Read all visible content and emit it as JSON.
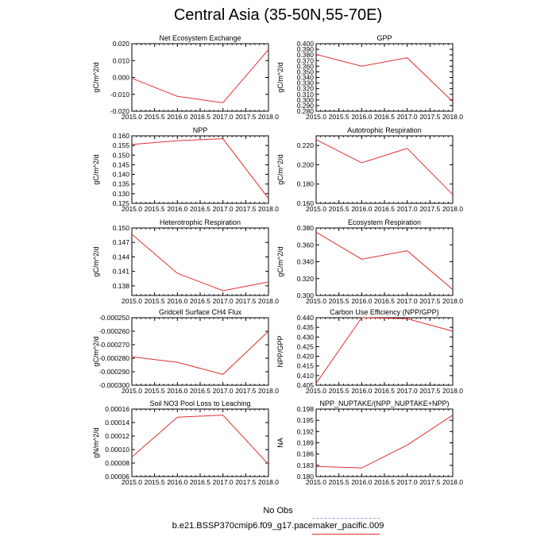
{
  "title": "Central Asia (35-50N,55-70E)",
  "legend": {
    "obs_label": "No Obs",
    "model_label": "b.e21.BSSP370cmip6.f09_g17.pacemaker_pacific.009",
    "obs_color": "#9aa0f0",
    "model_color": "#e03030"
  },
  "chart_data": [
    {
      "type": "line",
      "title": "Net Ecosystem Exchange",
      "ylabel": "gC/m^2/d",
      "x": [
        2015,
        2016,
        2017,
        2018
      ],
      "series": [
        {
          "values": [
            -0.0005,
            -0.0112,
            -0.015,
            0.0165
          ]
        }
      ],
      "xlim": [
        2015,
        2018
      ],
      "ylim": [
        -0.02,
        0.02
      ],
      "yticks": [
        -0.02,
        -0.01,
        0.0,
        0.01,
        0.02
      ],
      "yticklabels": [
        "-0.020",
        "-0.010",
        "0.000",
        "0.010",
        "0.020"
      ],
      "xticklabels": [
        "2015.0",
        "2015.5",
        "2016.0",
        "2016.5",
        "2017.0",
        "2017.5",
        "2018.0"
      ]
    },
    {
      "type": "line",
      "title": "GPP",
      "ylabel": "gC/m^2/d",
      "x": [
        2015,
        2016,
        2017,
        2018
      ],
      "series": [
        {
          "values": [
            0.381,
            0.36,
            0.375,
            0.297
          ]
        }
      ],
      "xlim": [
        2015,
        2018
      ],
      "ylim": [
        0.28,
        0.4
      ],
      "yticks": [
        0.28,
        0.29,
        0.3,
        0.31,
        0.32,
        0.33,
        0.34,
        0.35,
        0.36,
        0.37,
        0.38,
        0.39,
        0.4
      ],
      "yticklabels": [
        "0.280",
        "0.290",
        "0.300",
        "0.310",
        "0.320",
        "0.330",
        "0.340",
        "0.350",
        "0.360",
        "0.370",
        "0.380",
        "0.390",
        "0.400"
      ],
      "xticklabels": [
        "2015.0",
        "2015.5",
        "2016.0",
        "2016.5",
        "2017.0",
        "2017.5",
        "2018.0"
      ]
    },
    {
      "type": "line",
      "title": "NPP",
      "ylabel": "gC/m^2/d",
      "x": [
        2015,
        2016,
        2017,
        2018
      ],
      "series": [
        {
          "values": [
            0.1555,
            0.1575,
            0.1585,
            0.1275
          ]
        }
      ],
      "xlim": [
        2015,
        2018
      ],
      "ylim": [
        0.125,
        0.16
      ],
      "yticks": [
        0.125,
        0.13,
        0.135,
        0.14,
        0.145,
        0.15,
        0.155,
        0.16
      ],
      "yticklabels": [
        "0.125",
        "0.130",
        "0.135",
        "0.140",
        "0.145",
        "0.150",
        "0.155",
        "0.160"
      ],
      "xticklabels": [
        "2015.0",
        "2015.5",
        "2016.0",
        "2016.5",
        "2017.0",
        "2017.5",
        "2018.0"
      ]
    },
    {
      "type": "line",
      "title": "Autotrophic Respiration",
      "ylabel": "gC/m^2/d",
      "x": [
        2015,
        2016,
        2017,
        2018
      ],
      "series": [
        {
          "values": [
            0.226,
            0.202,
            0.217,
            0.169
          ]
        }
      ],
      "xlim": [
        2015,
        2018
      ],
      "ylim": [
        0.16,
        0.23
      ],
      "yticks": [
        0.16,
        0.18,
        0.2,
        0.22
      ],
      "yticklabels": [
        "0.160",
        "0.180",
        "0.200",
        "0.220"
      ],
      "xticklabels": [
        "2015.0",
        "2015.5",
        "2016.0",
        "2016.5",
        "2017.0",
        "2017.5",
        "2018.0"
      ]
    },
    {
      "type": "line",
      "title": "Heterotrophic Respiration",
      "ylabel": "gC/m^2/d",
      "x": [
        2015,
        2016,
        2017,
        2018
      ],
      "series": [
        {
          "values": [
            0.1487,
            0.1406,
            0.137,
            0.1388
          ]
        }
      ],
      "xlim": [
        2015,
        2018
      ],
      "ylim": [
        0.136,
        0.15
      ],
      "yticks": [
        0.138,
        0.141,
        0.144,
        0.147,
        0.15
      ],
      "yticklabels": [
        "0.138",
        "0.141",
        "0.144",
        "0.147",
        "0.150"
      ],
      "xticklabels": [
        "2015.0",
        "2015.5",
        "2016.0",
        "2016.5",
        "2017.0",
        "2017.5",
        "2018.0"
      ]
    },
    {
      "type": "line",
      "title": "Ecosystem Respiration",
      "ylabel": "gC/m^2/d",
      "x": [
        2015,
        2016,
        2017,
        2018
      ],
      "series": [
        {
          "values": [
            0.375,
            0.343,
            0.353,
            0.307
          ]
        }
      ],
      "xlim": [
        2015,
        2018
      ],
      "ylim": [
        0.3,
        0.38
      ],
      "yticks": [
        0.3,
        0.32,
        0.34,
        0.36,
        0.38
      ],
      "yticklabels": [
        "0.300",
        "0.320",
        "0.340",
        "0.360",
        "0.380"
      ],
      "xticklabels": [
        "2015.0",
        "2015.5",
        "2016.0",
        "2016.5",
        "2017.0",
        "2017.5",
        "2018.0"
      ]
    },
    {
      "type": "line",
      "title": "Gridcell Surface CH4 Flux",
      "ylabel": "gC/m^2/d",
      "x": [
        2015,
        2016,
        2017,
        2018
      ],
      "series": [
        {
          "values": [
            -0.000279,
            -0.000283,
            -0.000292,
            -0.00026
          ]
        }
      ],
      "xlim": [
        2015,
        2018
      ],
      "ylim": [
        -0.0003,
        -0.00025
      ],
      "yticks": [
        -0.0003,
        -0.00029,
        -0.00028,
        -0.00027,
        -0.00026,
        -0.00025
      ],
      "yticklabels": [
        "-0.000300",
        "-0.000290",
        "-0.000280",
        "-0.000270",
        "-0.000260",
        "-0.000250"
      ],
      "xticklabels": [
        "2015.0",
        "2015.5",
        "2016.0",
        "2016.5",
        "2017.0",
        "2017.5",
        "2018.0"
      ]
    },
    {
      "type": "line",
      "title": "Carbon Use Efficiency (NPP/GPP)",
      "ylabel": "NPP/GPP",
      "x": [
        2015,
        2016,
        2017,
        2018
      ],
      "series": [
        {
          "values": [
            0.406,
            0.44,
            0.4395,
            0.433
          ]
        }
      ],
      "xlim": [
        2015,
        2018
      ],
      "ylim": [
        0.405,
        0.44
      ],
      "yticks": [
        0.405,
        0.41,
        0.415,
        0.42,
        0.425,
        0.43,
        0.435,
        0.44
      ],
      "yticklabels": [
        "0.405",
        "0.410",
        "0.415",
        "0.420",
        "0.425",
        "0.430",
        "0.435",
        "0.440"
      ],
      "xticklabels": [
        "2015.0",
        "2015.5",
        "2016.0",
        "2016.5",
        "2017.0",
        "2017.5",
        "2018.0"
      ]
    },
    {
      "type": "line",
      "title": "Soil NO3 Pool Loss to Leaching",
      "ylabel": "gN/m^2/d",
      "x": [
        2015,
        2016,
        2017,
        2018
      ],
      "series": [
        {
          "values": [
            8.9e-05,
            0.000148,
            0.000151,
            7.8e-05
          ]
        }
      ],
      "xlim": [
        2015,
        2018
      ],
      "ylim": [
        6e-05,
        0.00016
      ],
      "yticks": [
        6e-05,
        8e-05,
        0.0001,
        0.00012,
        0.00014,
        0.00016
      ],
      "yticklabels": [
        "0.00006",
        "0.00008",
        "0.00010",
        "0.00012",
        "0.00014",
        "0.00016"
      ],
      "xticklabels": [
        "2015.0",
        "2015.5",
        "2016.0",
        "2016.5",
        "2017.0",
        "2017.5",
        "2018.0"
      ]
    },
    {
      "type": "line",
      "title": "NPP_NUPTAKE/(NPP_NUPTAKE+NPP)",
      "ylabel": "NA",
      "x": [
        2015,
        2016,
        2017,
        2018
      ],
      "series": [
        {
          "values": [
            0.1827,
            0.1823,
            0.1884,
            0.1964
          ]
        }
      ],
      "xlim": [
        2015,
        2018
      ],
      "ylim": [
        0.18,
        0.198
      ],
      "yticks": [
        0.18,
        0.183,
        0.186,
        0.189,
        0.192,
        0.195,
        0.198
      ],
      "yticklabels": [
        "0.180",
        "0.183",
        "0.186",
        "0.189",
        "0.192",
        "0.195",
        "0.198"
      ],
      "xticklabels": [
        "2015.0",
        "2015.5",
        "2016.0",
        "2016.5",
        "2017.0",
        "2017.5",
        "2018.0"
      ]
    }
  ]
}
